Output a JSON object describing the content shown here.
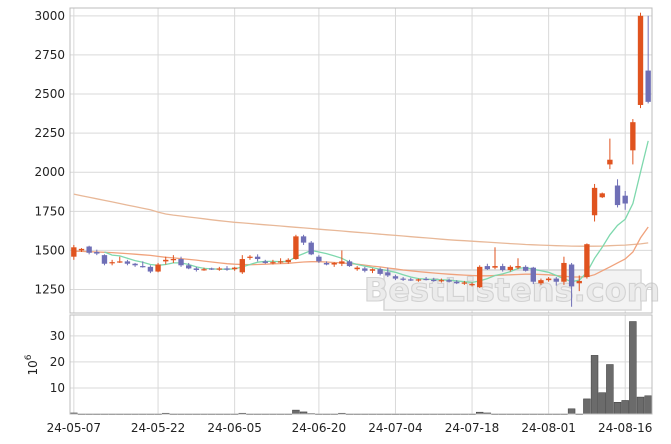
{
  "chart_data": [
    {
      "type": "candlestick",
      "ylim": [
        1100,
        3050
      ],
      "grid": true,
      "y_ticks": [
        1250,
        1500,
        1750,
        2000,
        2250,
        2500,
        2750,
        3000
      ],
      "x_tick_labels": [
        "24-05-07",
        "24-05-22",
        "24-06-05",
        "24-06-20",
        "24-07-04",
        "24-07-18",
        "24-08-01",
        "24-08-16"
      ],
      "up_color": "#e0531f",
      "down_color": "#6f6fb6",
      "ohlc": [
        [
          1460,
          1535,
          1440,
          1520
        ],
        [
          1500,
          1515,
          1490,
          1510
        ],
        [
          1525,
          1530,
          1475,
          1485
        ],
        [
          1490,
          1505,
          1470,
          1480
        ],
        [
          1470,
          1475,
          1405,
          1415
        ],
        [
          1420,
          1440,
          1405,
          1425
        ],
        [
          1425,
          1460,
          1420,
          1430
        ],
        [
          1430,
          1440,
          1405,
          1415
        ],
        [
          1415,
          1420,
          1395,
          1405
        ],
        [
          1400,
          1430,
          1390,
          1395
        ],
        [
          1395,
          1405,
          1355,
          1365
        ],
        [
          1365,
          1420,
          1360,
          1410
        ],
        [
          1430,
          1460,
          1410,
          1440
        ],
        [
          1440,
          1470,
          1420,
          1445
        ],
        [
          1445,
          1460,
          1395,
          1405
        ],
        [
          1405,
          1420,
          1380,
          1385
        ],
        [
          1385,
          1395,
          1365,
          1375
        ],
        [
          1375,
          1390,
          1370,
          1380
        ],
        [
          1385,
          1390,
          1375,
          1380
        ],
        [
          1380,
          1395,
          1370,
          1385
        ],
        [
          1385,
          1400,
          1370,
          1380
        ],
        [
          1380,
          1395,
          1370,
          1390
        ],
        [
          1360,
          1470,
          1350,
          1445
        ],
        [
          1455,
          1470,
          1440,
          1460
        ],
        [
          1460,
          1475,
          1430,
          1445
        ],
        [
          1430,
          1440,
          1415,
          1420
        ],
        [
          1420,
          1440,
          1410,
          1425
        ],
        [
          1425,
          1450,
          1415,
          1430
        ],
        [
          1425,
          1450,
          1415,
          1440
        ],
        [
          1445,
          1600,
          1440,
          1590
        ],
        [
          1590,
          1600,
          1535,
          1550
        ],
        [
          1550,
          1560,
          1470,
          1475
        ],
        [
          1460,
          1470,
          1420,
          1430
        ],
        [
          1420,
          1430,
          1405,
          1410
        ],
        [
          1410,
          1425,
          1395,
          1420
        ],
        [
          1415,
          1500,
          1400,
          1430
        ],
        [
          1430,
          1440,
          1395,
          1400
        ],
        [
          1380,
          1400,
          1370,
          1390
        ],
        [
          1385,
          1395,
          1360,
          1370
        ],
        [
          1370,
          1385,
          1355,
          1380
        ],
        [
          1380,
          1390,
          1340,
          1350
        ],
        [
          1360,
          1390,
          1330,
          1340
        ],
        [
          1335,
          1345,
          1310,
          1320
        ],
        [
          1320,
          1330,
          1305,
          1315
        ],
        [
          1315,
          1325,
          1305,
          1310
        ],
        [
          1310,
          1320,
          1300,
          1315
        ],
        [
          1318,
          1330,
          1308,
          1312
        ],
        [
          1312,
          1325,
          1300,
          1305
        ],
        [
          1305,
          1320,
          1295,
          1310
        ],
        [
          1310,
          1320,
          1295,
          1300
        ],
        [
          1300,
          1310,
          1285,
          1290
        ],
        [
          1290,
          1305,
          1280,
          1295
        ],
        [
          1280,
          1295,
          1270,
          1285
        ],
        [
          1265,
          1405,
          1260,
          1395
        ],
        [
          1400,
          1415,
          1375,
          1380
        ],
        [
          1390,
          1520,
          1380,
          1400
        ],
        [
          1400,
          1415,
          1365,
          1375
        ],
        [
          1375,
          1405,
          1365,
          1395
        ],
        [
          1390,
          1450,
          1380,
          1400
        ],
        [
          1395,
          1405,
          1365,
          1370
        ],
        [
          1390,
          1395,
          1285,
          1300
        ],
        [
          1290,
          1320,
          1280,
          1310
        ],
        [
          1310,
          1330,
          1300,
          1320
        ],
        [
          1320,
          1330,
          1275,
          1300
        ],
        [
          1300,
          1460,
          1280,
          1420
        ],
        [
          1410,
          1420,
          1140,
          1270
        ],
        [
          1290,
          1340,
          1240,
          1305
        ],
        [
          1330,
          1545,
          1320,
          1540
        ],
        [
          1725,
          1925,
          1685,
          1900
        ],
        [
          1840,
          1870,
          1835,
          1865
        ],
        [
          2050,
          2215,
          2020,
          2080
        ],
        [
          1915,
          1955,
          1775,
          1790
        ],
        [
          1850,
          1880,
          1760,
          1800
        ],
        [
          2140,
          2340,
          2050,
          2320
        ],
        [
          2430,
          3020,
          2410,
          3000
        ],
        [
          2650,
          3000,
          2440,
          2450
        ]
      ],
      "ma_short": {
        "color": "#7ed8ad",
        "values": [
          null,
          null,
          null,
          null,
          1490,
          1470,
          1465,
          1450,
          1435,
          1425,
          1410,
          1405,
          1410,
          1420,
          1420,
          1410,
          1395,
          1385,
          1382,
          1380,
          1380,
          1382,
          1395,
          1410,
          1425,
          1430,
          1430,
          1428,
          1430,
          1460,
          1480,
          1500,
          1490,
          1480,
          1465,
          1450,
          1425,
          1410,
          1400,
          1390,
          1380,
          1370,
          1360,
          1345,
          1330,
          1320,
          1316,
          1314,
          1312,
          1310,
          1305,
          1300,
          1295,
          1305,
          1320,
          1340,
          1350,
          1365,
          1385,
          1390,
          1380,
          1370,
          1360,
          1340,
          1320,
          1300,
          1310,
          1360,
          1450,
          1520,
          1600,
          1660,
          1700,
          1800,
          2000,
          2200
        ]
      },
      "ma_medium": {
        "color": "#f0a27c",
        "values": [
          1495,
          1494,
          1492,
          1490,
          1488,
          1486,
          1483,
          1480,
          1476,
          1472,
          1468,
          1462,
          1456,
          1452,
          1448,
          1443,
          1438,
          1432,
          1426,
          1420,
          1415,
          1412,
          1410,
          1409,
          1410,
          1412,
          1414,
          1416,
          1418,
          1422,
          1426,
          1428,
          1428,
          1426,
          1423,
          1420,
          1416,
          1412,
          1406,
          1400,
          1395,
          1388,
          1382,
          1375,
          1370,
          1365,
          1360,
          1356,
          1352,
          1348,
          1345,
          1342,
          1340,
          1338,
          1338,
          1340,
          1342,
          1344,
          1346,
          1348,
          1348,
          1346,
          1344,
          1340,
          1336,
          1330,
          1330,
          1332,
          1345,
          1370,
          1395,
          1420,
          1445,
          1490,
          1580,
          1650
        ]
      },
      "ma_long": {
        "color": "#e8b898",
        "values": [
          1860,
          1850,
          1840,
          1830,
          1820,
          1810,
          1800,
          1790,
          1780,
          1770,
          1760,
          1745,
          1733,
          1726,
          1720,
          1714,
          1708,
          1702,
          1696,
          1690,
          1685,
          1680,
          1676,
          1672,
          1668,
          1664,
          1660,
          1656,
          1652,
          1648,
          1644,
          1640,
          1636,
          1632,
          1628,
          1624,
          1620,
          1616,
          1612,
          1608,
          1604,
          1600,
          1596,
          1592,
          1588,
          1584,
          1580,
          1576,
          1572,
          1568,
          1565,
          1562,
          1559,
          1556,
          1553,
          1550,
          1547,
          1544,
          1541,
          1538,
          1536,
          1534,
          1532,
          1530,
          1529,
          1528,
          1527,
          1527,
          1527,
          1528,
          1530,
          1532,
          1534,
          1538,
          1542,
          1548
        ]
      }
    },
    {
      "type": "bar",
      "ylabel": "10^6",
      "ylim": [
        0,
        38
      ],
      "y_ticks": [
        10,
        20,
        30
      ],
      "bar_color": "#6b6b6b",
      "values": [
        0.4,
        0.1,
        0.1,
        0.1,
        0.1,
        0.1,
        0.1,
        0.1,
        0.1,
        0.1,
        0.1,
        0.1,
        0.3,
        0.1,
        0.1,
        0.1,
        0.1,
        0.1,
        0.1,
        0.1,
        0.1,
        0.1,
        0.3,
        0.1,
        0.1,
        0.1,
        0.1,
        0.1,
        0.1,
        1.5,
        0.8,
        0.2,
        0.1,
        0.1,
        0.1,
        0.3,
        0.1,
        0.1,
        0.1,
        0.1,
        0.1,
        0.1,
        0.1,
        0.1,
        0.1,
        0.1,
        0.1,
        0.1,
        0.1,
        0.1,
        0.1,
        0.1,
        0.1,
        0.7,
        0.4,
        0.1,
        0.1,
        0.1,
        0.1,
        0.1,
        0.1,
        0.1,
        0.1,
        0.1,
        0.1,
        2.0,
        0.1,
        5.8,
        22.5,
        8.2,
        19.0,
        4.5,
        5.2,
        35.5,
        6.5,
        7.0
      ]
    }
  ],
  "watermark": "BestListens.com"
}
